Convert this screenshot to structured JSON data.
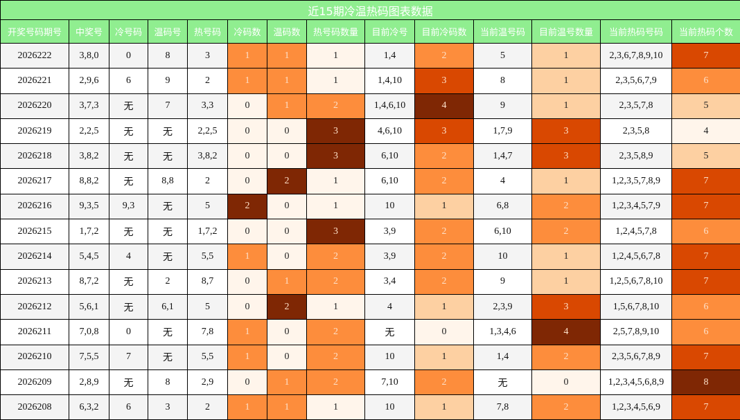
{
  "title": "近15期冷温热码图表数据",
  "table": {
    "columns": [
      "开奖号码期号",
      "中奖号",
      "冷号码",
      "温码号",
      "热号码",
      "冷码数",
      "温码数",
      "热号码数量",
      "目前冷号",
      "目前冷码数",
      "当前温号码",
      "目前温号数量",
      "当前热码号码",
      "当前热码个数"
    ],
    "rows": [
      [
        "2026222",
        "3,8,0",
        "0",
        "8",
        "3",
        1,
        1,
        1,
        "1,4",
        2,
        "5",
        1,
        "2,3,6,7,8,9,10",
        7
      ],
      [
        "2026221",
        "2,9,6",
        "6",
        "9",
        "2",
        1,
        1,
        1,
        "1,4,10",
        3,
        "8",
        1,
        "2,3,5,6,7,9",
        6
      ],
      [
        "2026220",
        "3,7,3",
        "无",
        "7",
        "3,3",
        0,
        1,
        2,
        "1,4,6,10",
        4,
        "9",
        1,
        "2,3,5,7,8",
        5
      ],
      [
        "2026219",
        "2,2,5",
        "无",
        "无",
        "2,2,5",
        0,
        0,
        3,
        "4,6,10",
        3,
        "1,7,9",
        3,
        "2,3,5,8",
        4
      ],
      [
        "2026218",
        "3,8,2",
        "无",
        "无",
        "3,8,2",
        0,
        0,
        3,
        "6,10",
        2,
        "1,4,7",
        3,
        "2,3,5,8,9",
        5
      ],
      [
        "2026217",
        "8,8,2",
        "无",
        "8,8",
        "2",
        0,
        2,
        1,
        "6,10",
        2,
        "4",
        1,
        "1,2,3,5,7,8,9",
        7
      ],
      [
        "2026216",
        "9,3,5",
        "9,3",
        "无",
        "5",
        2,
        0,
        1,
        "10",
        1,
        "6,8",
        2,
        "1,2,3,4,5,7,9",
        7
      ],
      [
        "2026215",
        "1,7,2",
        "无",
        "无",
        "1,7,2",
        0,
        0,
        3,
        "3,9",
        2,
        "6,10",
        2,
        "1,2,4,5,7,8",
        6
      ],
      [
        "2026214",
        "5,4,5",
        "4",
        "无",
        "5,5",
        1,
        0,
        2,
        "3,9",
        2,
        "10",
        1,
        "1,2,4,5,6,7,8",
        7
      ],
      [
        "2026213",
        "8,7,2",
        "无",
        "2",
        "8,7",
        0,
        1,
        2,
        "3,4",
        2,
        "9",
        1,
        "1,2,5,6,7,8,10",
        7
      ],
      [
        "2026212",
        "5,6,1",
        "无",
        "6,1",
        "5",
        0,
        2,
        1,
        "4",
        1,
        "2,3,9",
        3,
        "1,5,6,7,8,10",
        6
      ],
      [
        "2026211",
        "7,0,8",
        "0",
        "无",
        "7,8",
        1,
        0,
        2,
        "无",
        0,
        "1,3,4,6",
        4,
        "2,5,7,8,9,10",
        6
      ],
      [
        "2026210",
        "7,5,5",
        "7",
        "无",
        "5,5",
        1,
        0,
        2,
        "10",
        1,
        "1,4",
        2,
        "2,3,5,6,7,8,9",
        7
      ],
      [
        "2026209",
        "2,8,9",
        "无",
        "8",
        "2,9",
        0,
        1,
        2,
        "7,10",
        2,
        "无",
        0,
        "1,2,3,4,5,6,8,9",
        8
      ],
      [
        "2026208",
        "6,3,2",
        "6",
        "3",
        "2",
        1,
        1,
        1,
        "10",
        1,
        "7,8",
        2,
        "1,2,3,4,5,6,9",
        7
      ]
    ]
  }
}
